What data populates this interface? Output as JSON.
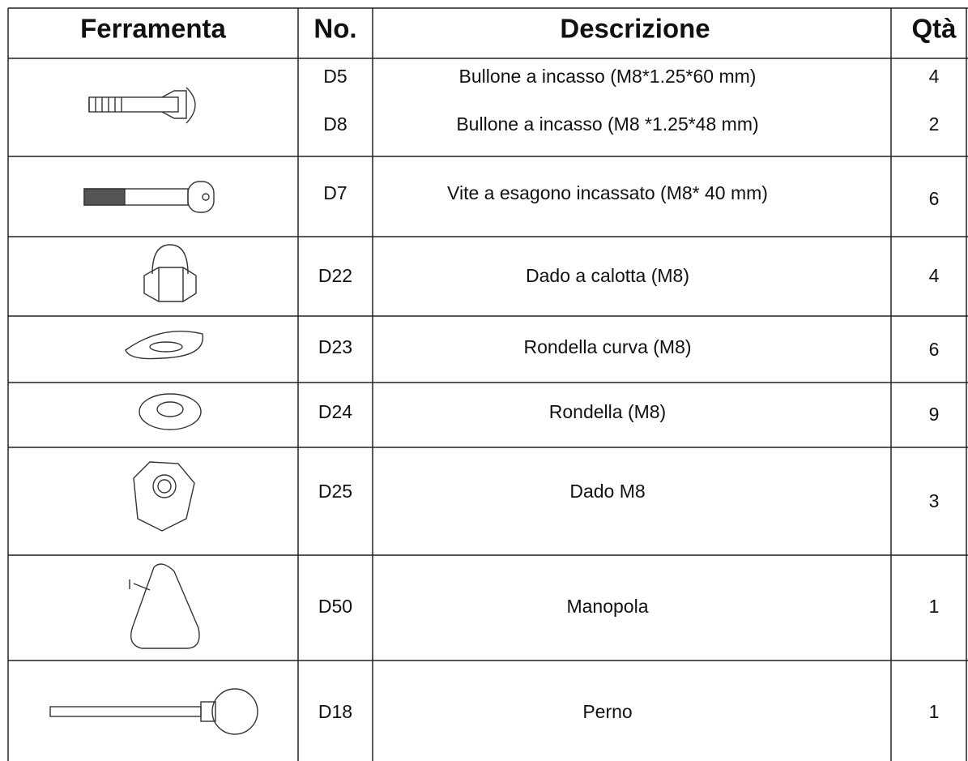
{
  "table": {
    "header": [
      "Ferramenta",
      "No.",
      "Descrizione",
      "Qtà"
    ],
    "rows": [
      {
        "items": [
          {
            "no": "D5",
            "descrizione": "Bullone a incasso  (M8*1.25*60 mm)",
            "qta": 4
          },
          {
            "no": "D8",
            "descrizione": "Bullone a incasso (M8 *1.25*48 mm)",
            "qta": 2
          }
        ]
      },
      {
        "items": [
          {
            "no": "D7",
            "descrizione": "Vite a esagono incassato (M8* 40 mm)",
            "qta": 6
          }
        ]
      },
      {
        "items": [
          {
            "no": "D22",
            "descrizione": "Dado a calotta (M8)",
            "qta": 4
          }
        ]
      },
      {
        "items": [
          {
            "no": "D23",
            "descrizione": "Rondella curva (M8)",
            "qta": 6
          }
        ]
      },
      {
        "items": [
          {
            "no": "D24",
            "descrizione": "Rondella (M8)",
            "qta": 9
          }
        ]
      },
      {
        "items": [
          {
            "no": "D25",
            "descrizione": "Dado M8",
            "qta": 3
          }
        ]
      },
      {
        "items": [
          {
            "no": "D50",
            "descrizione": "Manopola",
            "qta": 1
          }
        ]
      },
      {
        "items": [
          {
            "no": "D18",
            "descrizione": "Perno",
            "qta": 1
          }
        ]
      }
    ]
  }
}
